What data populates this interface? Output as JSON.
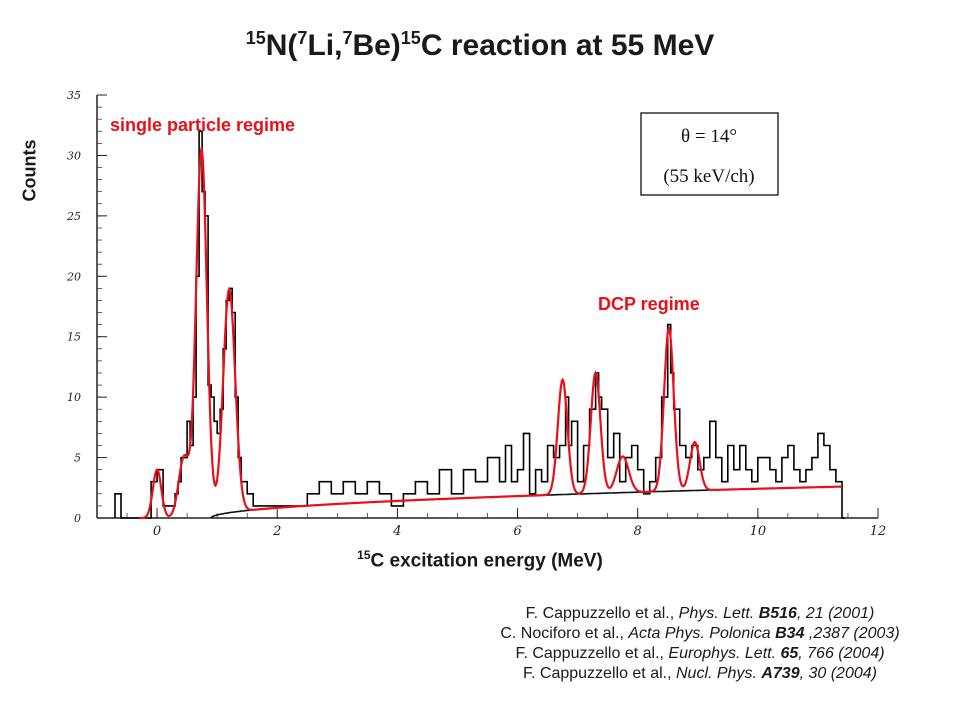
{
  "title": {
    "pre": "",
    "sup1": "15",
    "t1": "N(",
    "sup2": "7",
    "t2": "Li,",
    "sup3": "7",
    "t3": "Be)",
    "sup4": "15",
    "t4": "C reaction at 55 MeV"
  },
  "ylabel": "Counts",
  "xlabel": {
    "sup": "15",
    "text": "C excitation energy (MeV)"
  },
  "annotations": {
    "single_particle": "single particle regime",
    "dcp": "DCP regime",
    "theta": "θ = 14°",
    "channel": "(55 keV/ch)"
  },
  "colors": {
    "fit": "#e8101a",
    "data": "#000000",
    "annotation": "#e8101a",
    "background": "#000000"
  },
  "references": [
    {
      "a": "F. Cappuzzello et al., ",
      "j": "Phys. Lett. ",
      "v": "B516",
      "r": ", 21 (2001)"
    },
    {
      "a": "C. Nociforo et al., ",
      "j": "Acta Phys. Polonica ",
      "v": "B34",
      "r": " ,2387 (2003)"
    },
    {
      "a": "F. Cappuzzello et al., ",
      "j": "Europhys. Lett. ",
      "v": "65",
      "r": ", 766 (2004)"
    },
    {
      "a": "F. Cappuzzello et al., ",
      "j": "Nucl. Phys. ",
      "v": "A739",
      "r": ", 30 (2004)"
    }
  ],
  "chart_data": {
    "type": "histogram",
    "xlim": [
      -1,
      12
    ],
    "ylim": [
      0,
      35
    ],
    "xticks": [
      0,
      2,
      4,
      6,
      8,
      10,
      12
    ],
    "yticks": [
      0,
      5,
      10,
      15,
      20,
      25,
      30,
      35
    ],
    "grid": false,
    "histogram": {
      "name": "data",
      "points": [
        [
          -0.7,
          2
        ],
        [
          -0.6,
          0
        ],
        [
          -0.1,
          3
        ],
        [
          0.0,
          4
        ],
        [
          0.1,
          1
        ],
        [
          0.2,
          1
        ],
        [
          0.3,
          2
        ],
        [
          0.35,
          3
        ],
        [
          0.4,
          5
        ],
        [
          0.45,
          5
        ],
        [
          0.5,
          8
        ],
        [
          0.55,
          6
        ],
        [
          0.6,
          10
        ],
        [
          0.65,
          20
        ],
        [
          0.7,
          32
        ],
        [
          0.75,
          27
        ],
        [
          0.8,
          25
        ],
        [
          0.85,
          11
        ],
        [
          0.9,
          10
        ],
        [
          0.95,
          8
        ],
        [
          1.0,
          7
        ],
        [
          1.05,
          9
        ],
        [
          1.1,
          14
        ],
        [
          1.15,
          18
        ],
        [
          1.2,
          19
        ],
        [
          1.25,
          17
        ],
        [
          1.3,
          10
        ],
        [
          1.35,
          5
        ],
        [
          1.4,
          3
        ],
        [
          1.5,
          2
        ],
        [
          1.6,
          1
        ],
        [
          1.8,
          1
        ],
        [
          2.0,
          1
        ],
        [
          2.1,
          1
        ],
        [
          2.3,
          1
        ],
        [
          2.5,
          2
        ],
        [
          2.7,
          3
        ],
        [
          2.9,
          2
        ],
        [
          3.1,
          3
        ],
        [
          3.3,
          2
        ],
        [
          3.5,
          3
        ],
        [
          3.7,
          2
        ],
        [
          3.9,
          1
        ],
        [
          4.1,
          2
        ],
        [
          4.3,
          3
        ],
        [
          4.5,
          2
        ],
        [
          4.7,
          4
        ],
        [
          4.9,
          2
        ],
        [
          5.1,
          4
        ],
        [
          5.3,
          3
        ],
        [
          5.5,
          5
        ],
        [
          5.7,
          3
        ],
        [
          5.8,
          6
        ],
        [
          5.9,
          3
        ],
        [
          6.0,
          4
        ],
        [
          6.1,
          7
        ],
        [
          6.2,
          2
        ],
        [
          6.3,
          4
        ],
        [
          6.4,
          3
        ],
        [
          6.5,
          6
        ],
        [
          6.6,
          5
        ],
        [
          6.7,
          6
        ],
        [
          6.8,
          10
        ],
        [
          6.85,
          6
        ],
        [
          6.9,
          8
        ],
        [
          7.0,
          3
        ],
        [
          7.1,
          6
        ],
        [
          7.2,
          9
        ],
        [
          7.3,
          12
        ],
        [
          7.35,
          10
        ],
        [
          7.4,
          9
        ],
        [
          7.5,
          5
        ],
        [
          7.6,
          7
        ],
        [
          7.7,
          3
        ],
        [
          7.8,
          5
        ],
        [
          7.9,
          6
        ],
        [
          8.0,
          4
        ],
        [
          8.1,
          2
        ],
        [
          8.2,
          3
        ],
        [
          8.3,
          5
        ],
        [
          8.4,
          10
        ],
        [
          8.5,
          16
        ],
        [
          8.55,
          12
        ],
        [
          8.6,
          9
        ],
        [
          8.7,
          6
        ],
        [
          8.8,
          5
        ],
        [
          8.9,
          6
        ],
        [
          9.0,
          4
        ],
        [
          9.1,
          5
        ],
        [
          9.2,
          8
        ],
        [
          9.3,
          5
        ],
        [
          9.4,
          3
        ],
        [
          9.5,
          6
        ],
        [
          9.6,
          4
        ],
        [
          9.7,
          6
        ],
        [
          9.8,
          4
        ],
        [
          9.9,
          3
        ],
        [
          10.0,
          5
        ],
        [
          10.1,
          5
        ],
        [
          10.2,
          4
        ],
        [
          10.3,
          3
        ],
        [
          10.4,
          5
        ],
        [
          10.5,
          6
        ],
        [
          10.6,
          4
        ],
        [
          10.7,
          3
        ],
        [
          10.8,
          4
        ],
        [
          10.9,
          5
        ],
        [
          11.0,
          7
        ],
        [
          11.1,
          6
        ],
        [
          11.2,
          4
        ],
        [
          11.3,
          3
        ],
        [
          11.4,
          0
        ]
      ]
    },
    "fit": {
      "name": "fit",
      "background": {
        "start_x": 0.9,
        "end_x": 11.4,
        "start_y": 0,
        "end_y": 2.6
      },
      "peaks": [
        {
          "center": 0.0,
          "height": 4.0,
          "sigma": 0.07
        },
        {
          "center": 0.45,
          "height": 5.0,
          "sigma": 0.09
        },
        {
          "center": 0.74,
          "height": 30.5,
          "sigma": 0.09
        },
        {
          "center": 1.2,
          "height": 18.5,
          "sigma": 0.1
        },
        {
          "center": 6.75,
          "height": 9.5,
          "sigma": 0.08
        },
        {
          "center": 7.3,
          "height": 10.0,
          "sigma": 0.08
        },
        {
          "center": 7.75,
          "height": 3.0,
          "sigma": 0.1
        },
        {
          "center": 8.52,
          "height": 13.5,
          "sigma": 0.08
        },
        {
          "center": 8.95,
          "height": 4.0,
          "sigma": 0.08
        }
      ]
    }
  }
}
